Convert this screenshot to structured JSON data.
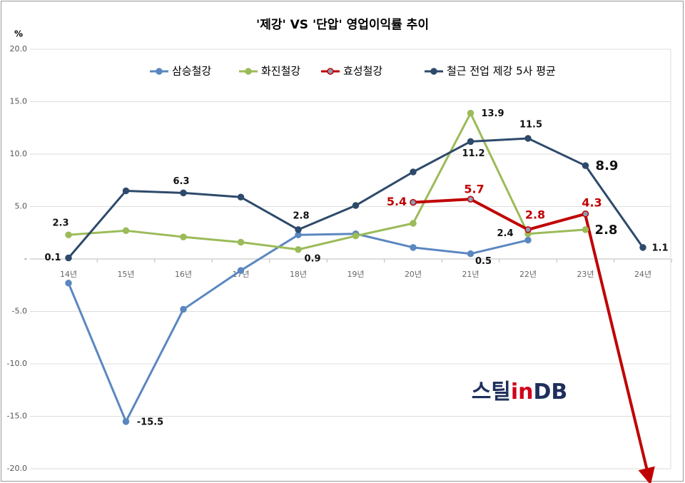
{
  "chart_data": {
    "type": "line",
    "title": "'제강' VS '단압' 영업이익률 추이",
    "y_unit": "%",
    "categories": [
      "14년",
      "15년",
      "16년",
      "17년",
      "18년",
      "19년",
      "20년",
      "21년",
      "22년",
      "23년",
      "24년"
    ],
    "ylim": [
      -20,
      20
    ],
    "yticks": [
      {
        "value": 20,
        "label": "20.0"
      },
      {
        "value": 15,
        "label": "15.0"
      },
      {
        "value": 10,
        "label": "10.0"
      },
      {
        "value": 5,
        "label": "5.0"
      },
      {
        "value": 0,
        "label": "-"
      },
      {
        "value": -5,
        "label": "-5.0"
      },
      {
        "value": -10,
        "label": "-10.0"
      },
      {
        "value": -15,
        "label": "-15.0"
      },
      {
        "value": -20,
        "label": "-20.0"
      }
    ],
    "grid": true,
    "legend": "top",
    "series": [
      {
        "name": "삼승철강",
        "color": "#5b87c0",
        "values": [
          -2.3,
          -15.5,
          -4.8,
          -1.1,
          2.3,
          2.4,
          1.1,
          0.5,
          1.8,
          null,
          null
        ],
        "value_labels": [
          null,
          "-15.5",
          null,
          null,
          null,
          null,
          null,
          "0.5",
          null,
          null,
          null
        ]
      },
      {
        "name": "화진철강",
        "color": "#9bbb59",
        "values": [
          2.3,
          2.7,
          2.1,
          1.6,
          0.9,
          2.2,
          3.4,
          13.9,
          2.4,
          2.8,
          null
        ],
        "value_labels": [
          "2.3",
          null,
          null,
          null,
          "0.9",
          null,
          null,
          "13.9",
          "2.4",
          "2.8",
          null
        ]
      },
      {
        "name": "효성철강",
        "color": "#c00000",
        "marker_color": "#8c9db5",
        "values": [
          null,
          null,
          null,
          null,
          null,
          null,
          5.4,
          5.7,
          2.8,
          4.3,
          null
        ],
        "value_labels": [
          null,
          null,
          null,
          null,
          null,
          null,
          "5.4",
          "5.7",
          "2.8",
          "4.3",
          null
        ]
      },
      {
        "name": "철근 전업 제강 5사 평균",
        "color": "#2e4a6b",
        "values": [
          0.1,
          6.5,
          6.3,
          5.9,
          2.8,
          5.1,
          8.3,
          11.2,
          11.5,
          8.9,
          1.1
        ],
        "value_labels": [
          "0.1",
          null,
          "6.3",
          null,
          "2.8",
          null,
          null,
          "11.2",
          "11.5",
          "8.9",
          "1.1"
        ]
      }
    ],
    "watermark": [
      "스틸",
      "in",
      "DB"
    ]
  }
}
